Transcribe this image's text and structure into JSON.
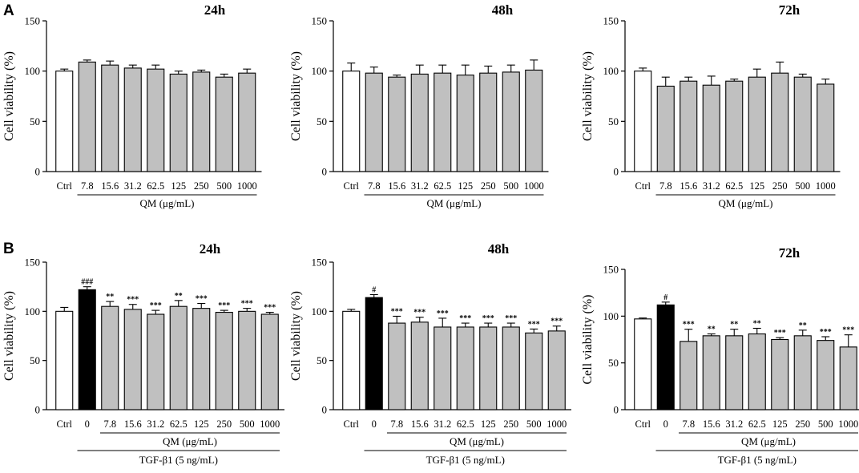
{
  "figure": {
    "row_labels": [
      "A",
      "B"
    ],
    "colors": {
      "ctrl": "#ffffff",
      "tgf": "#000000",
      "qm": "#c0c0c0",
      "stroke": "#000000"
    }
  },
  "chart_data": [
    {
      "type": "bar",
      "panel": "A",
      "title": "24h",
      "categories": [
        "Ctrl",
        "7.8",
        "15.6",
        "31.2",
        "62.5",
        "125",
        "250",
        "500",
        "1000"
      ],
      "values": [
        100,
        109,
        106,
        103,
        102,
        97,
        99,
        94,
        98
      ],
      "errors": [
        2,
        2,
        4,
        3,
        4,
        3,
        2,
        3,
        4
      ],
      "significance": [
        "",
        "",
        "",
        "",
        "",
        "",
        "",
        "",
        ""
      ],
      "ylabel": "Cell viability (%)",
      "xlabel": "QM (μg/mL)",
      "ylim": [
        0,
        150
      ],
      "yticks": [
        0,
        50,
        100,
        150
      ]
    },
    {
      "type": "bar",
      "panel": "A",
      "title": "48h",
      "categories": [
        "Ctrl",
        "7.8",
        "15.6",
        "31.2",
        "62.5",
        "125",
        "250",
        "500",
        "1000"
      ],
      "values": [
        100,
        98,
        94,
        97,
        98,
        96,
        98,
        99,
        101
      ],
      "errors": [
        8,
        6,
        2,
        9,
        8,
        10,
        7,
        7,
        10
      ],
      "significance": [
        "",
        "",
        "",
        "",
        "",
        "",
        "",
        "",
        ""
      ],
      "ylabel": "Cell viability (%)",
      "xlabel": "QM (μg/mL)",
      "ylim": [
        0,
        150
      ],
      "yticks": [
        0,
        50,
        100,
        150
      ]
    },
    {
      "type": "bar",
      "panel": "A",
      "title": "72h",
      "categories": [
        "Ctrl",
        "7.8",
        "15.6",
        "31.2",
        "62.5",
        "125",
        "250",
        "500",
        "1000"
      ],
      "values": [
        100,
        85,
        90,
        86,
        90,
        94,
        98,
        94,
        87
      ],
      "errors": [
        3,
        9,
        4,
        9,
        2,
        8,
        11,
        3,
        5
      ],
      "significance": [
        "",
        "",
        "",
        "",
        "",
        "",
        "",
        "",
        ""
      ],
      "ylabel": "Cell viability (%)",
      "xlabel": "QM (μg/mL)",
      "ylim": [
        0,
        150
      ],
      "yticks": [
        0,
        50,
        100,
        150
      ]
    },
    {
      "type": "bar",
      "panel": "B",
      "title": "24h",
      "categories": [
        "Ctrl",
        "0",
        "7.8",
        "15.6",
        "31.2",
        "62.5",
        "125",
        "250",
        "500",
        "1000"
      ],
      "values": [
        100,
        122,
        105,
        102,
        97,
        105,
        103,
        99,
        100,
        97
      ],
      "errors": [
        4,
        3,
        5,
        5,
        4,
        6,
        5,
        2,
        3,
        2
      ],
      "significance": [
        "",
        "###",
        "**",
        "***",
        "***",
        "**",
        "***",
        "***",
        "***",
        "***"
      ],
      "ylabel": "Cell viability (%)",
      "xlabel": "QM (μg/mL)",
      "treatment": "TGF-β1 (5 ng/mL)",
      "ylim": [
        0,
        150
      ],
      "yticks": [
        0,
        50,
        100,
        150
      ]
    },
    {
      "type": "bar",
      "panel": "B",
      "title": "48h",
      "categories": [
        "Ctrl",
        "0",
        "7.8",
        "15.6",
        "31.2",
        "62.5",
        "125",
        "250",
        "500",
        "1000"
      ],
      "values": [
        100,
        114,
        88,
        89,
        84,
        84,
        84,
        84,
        78,
        80
      ],
      "errors": [
        2,
        3,
        7,
        5,
        9,
        4,
        4,
        4,
        4,
        5
      ],
      "significance": [
        "",
        "#",
        "***",
        "***",
        "***",
        "***",
        "***",
        "***",
        "***",
        "***"
      ],
      "ylabel": "Cell viability (%)",
      "xlabel": "QM (μg/mL)",
      "treatment": "TGF-β1 (5 ng/mL)",
      "ylim": [
        0,
        150
      ],
      "yticks": [
        0,
        50,
        100,
        150
      ]
    },
    {
      "type": "bar",
      "panel": "B",
      "title": "72h",
      "categories": [
        "Ctrl",
        "0",
        "7.8",
        "15.6",
        "31.2",
        "62.5",
        "125",
        "250",
        "500",
        "1000"
      ],
      "values": [
        97,
        112,
        73,
        79,
        79,
        81,
        75,
        79,
        74,
        67
      ],
      "errors": [
        1,
        3,
        13,
        2,
        7,
        6,
        2,
        6,
        4,
        13
      ],
      "significance": [
        "",
        "#",
        "***",
        "**",
        "**",
        "**",
        "***",
        "**",
        "***",
        "***"
      ],
      "ylabel": "Cell viability (%)",
      "xlabel": "QM (μg/mL)",
      "treatment": "TGF-β1 (5 ng/mL)",
      "ylim": [
        0,
        150
      ],
      "yticks": [
        0,
        50,
        100,
        150
      ]
    }
  ]
}
